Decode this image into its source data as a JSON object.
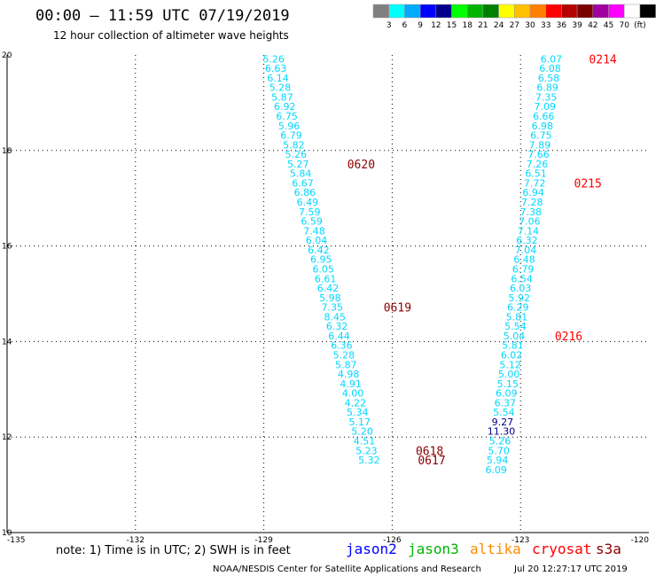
{
  "chart_data": {
    "type": "scatter",
    "title": "00:00 – 11:59 UTC 07/19/2019",
    "subtitle": "12 hour collection of altimeter wave heights",
    "xlim": [
      -135,
      -120
    ],
    "ylim": [
      10,
      20
    ],
    "x_ticks": [
      {
        "value": -135,
        "label": "-135"
      },
      {
        "value": -132,
        "label": "-132"
      },
      {
        "value": -129,
        "label": "-129"
      },
      {
        "value": -126,
        "label": "-126"
      },
      {
        "value": -123,
        "label": "-123"
      },
      {
        "value": -120,
        "label": "-120"
      }
    ],
    "y_ticks": [
      {
        "value": 10,
        "label": "10"
      },
      {
        "value": 12,
        "label": "12"
      },
      {
        "value": 14,
        "label": "14"
      },
      {
        "value": 16,
        "label": "16"
      },
      {
        "value": 18,
        "label": "18"
      },
      {
        "value": 20,
        "label": "20"
      }
    ],
    "grid": true,
    "colorbar": {
      "unit": "(ft)",
      "colors": [
        "#808080",
        "#00ffff",
        "#00aaff",
        "#0000ff",
        "#00008b",
        "#00ff00",
        "#00b400",
        "#008000",
        "#ffff00",
        "#ffc000",
        "#ff8000",
        "#ff0000",
        "#b40000",
        "#780000",
        "#a000a0",
        "#ff00ff",
        "#ffffff",
        "#000000"
      ],
      "labels": [
        "3",
        "6",
        "9",
        "12",
        "15",
        "18",
        "21",
        "24",
        "27",
        "30",
        "33",
        "36",
        "39",
        "42",
        "45",
        "70"
      ]
    },
    "tracks": [
      {
        "color": "#00d8ff",
        "points": [
          {
            "x": -128.77,
            "y": 19.92,
            "label": "5.26"
          },
          {
            "x": -128.72,
            "y": 19.72,
            "label": "6.63"
          },
          {
            "x": -128.67,
            "y": 19.52,
            "label": "6.14"
          },
          {
            "x": -128.62,
            "y": 19.32,
            "label": "5.28"
          },
          {
            "x": -128.57,
            "y": 19.12,
            "label": "5.87"
          },
          {
            "x": -128.51,
            "y": 18.92,
            "label": "6.92"
          },
          {
            "x": -128.46,
            "y": 18.72,
            "label": "6.75"
          },
          {
            "x": -128.41,
            "y": 18.52,
            "label": "5.96"
          },
          {
            "x": -128.36,
            "y": 18.32,
            "label": "6.79"
          },
          {
            "x": -128.3,
            "y": 18.12,
            "label": "5.82"
          },
          {
            "x": -128.25,
            "y": 17.92,
            "label": "5.26"
          },
          {
            "x": -128.2,
            "y": 17.72,
            "label": "5.27"
          },
          {
            "x": -128.14,
            "y": 17.52,
            "label": "5.84"
          },
          {
            "x": -128.09,
            "y": 17.32,
            "label": "6.67"
          },
          {
            "x": -128.04,
            "y": 17.12,
            "label": "6.86"
          },
          {
            "x": -127.98,
            "y": 16.92,
            "label": "6.49"
          },
          {
            "x": -127.93,
            "y": 16.72,
            "label": "7.59"
          },
          {
            "x": -127.88,
            "y": 16.52,
            "label": "6.59"
          },
          {
            "x": -127.82,
            "y": 16.32,
            "label": "7.48"
          },
          {
            "x": -127.77,
            "y": 16.12,
            "label": "6.04"
          },
          {
            "x": -127.72,
            "y": 15.92,
            "label": "6.42"
          },
          {
            "x": -127.66,
            "y": 15.72,
            "label": "6.95"
          },
          {
            "x": -127.61,
            "y": 15.52,
            "label": "6.05"
          },
          {
            "x": -127.56,
            "y": 15.32,
            "label": "6.61"
          },
          {
            "x": -127.5,
            "y": 15.12,
            "label": "6.42"
          },
          {
            "x": -127.45,
            "y": 14.92,
            "label": "5.98"
          },
          {
            "x": -127.4,
            "y": 14.72,
            "label": "7.35"
          },
          {
            "x": -127.34,
            "y": 14.52,
            "label": "8.45"
          },
          {
            "x": -127.29,
            "y": 14.32,
            "label": "6.32"
          },
          {
            "x": -127.24,
            "y": 14.12,
            "label": "6.44"
          },
          {
            "x": -127.18,
            "y": 13.92,
            "label": "6.36"
          },
          {
            "x": -127.13,
            "y": 13.72,
            "label": "5.28"
          },
          {
            "x": -127.08,
            "y": 13.52,
            "label": "5.87"
          },
          {
            "x": -127.02,
            "y": 13.32,
            "label": "4.98"
          },
          {
            "x": -126.97,
            "y": 13.12,
            "label": "4.91"
          },
          {
            "x": -126.92,
            "y": 12.92,
            "label": "4.00"
          },
          {
            "x": -126.86,
            "y": 12.72,
            "label": "4.22"
          },
          {
            "x": -126.81,
            "y": 12.52,
            "label": "5.34"
          },
          {
            "x": -126.76,
            "y": 12.32,
            "label": "5.17"
          },
          {
            "x": -126.7,
            "y": 12.12,
            "label": "5.20"
          },
          {
            "x": -126.65,
            "y": 11.92,
            "label": "4.51"
          },
          {
            "x": -126.6,
            "y": 11.72,
            "label": "5.23"
          },
          {
            "x": -126.54,
            "y": 11.52,
            "label": "5.32"
          }
        ],
        "annotations": [
          {
            "x": -127.05,
            "y": 17.72,
            "label": "0620",
            "color": "#8b0000"
          },
          {
            "x": -126.2,
            "y": 14.72,
            "label": "0619",
            "color": "#8b0000"
          },
          {
            "x": -125.45,
            "y": 11.72,
            "label": "0618",
            "color": "#8b0000"
          },
          {
            "x": -125.4,
            "y": 11.52,
            "label": "0617",
            "color": "#8b0000"
          }
        ]
      },
      {
        "color": "#00d8ff",
        "points": [
          {
            "x": -122.28,
            "y": 19.92,
            "label": "6.07"
          },
          {
            "x": -122.31,
            "y": 19.72,
            "label": "6.08"
          },
          {
            "x": -122.34,
            "y": 19.52,
            "label": "6.58"
          },
          {
            "x": -122.37,
            "y": 19.32,
            "label": "6.89"
          },
          {
            "x": -122.4,
            "y": 19.12,
            "label": "7.35"
          },
          {
            "x": -122.43,
            "y": 18.92,
            "label": "7.09"
          },
          {
            "x": -122.46,
            "y": 18.72,
            "label": "6.66"
          },
          {
            "x": -122.49,
            "y": 18.52,
            "label": "6.98"
          },
          {
            "x": -122.52,
            "y": 18.32,
            "label": "6.75"
          },
          {
            "x": -122.55,
            "y": 18.12,
            "label": "7.89"
          },
          {
            "x": -122.58,
            "y": 17.92,
            "label": "7.66"
          },
          {
            "x": -122.61,
            "y": 17.72,
            "label": "7.26"
          },
          {
            "x": -122.64,
            "y": 17.52,
            "label": "6.51"
          },
          {
            "x": -122.67,
            "y": 17.32,
            "label": "7.72"
          },
          {
            "x": -122.7,
            "y": 17.12,
            "label": "6.94"
          },
          {
            "x": -122.73,
            "y": 16.92,
            "label": "7.28"
          },
          {
            "x": -122.76,
            "y": 16.72,
            "label": "7.38"
          },
          {
            "x": -122.79,
            "y": 16.52,
            "label": "7.06"
          },
          {
            "x": -122.82,
            "y": 16.32,
            "label": "7.14"
          },
          {
            "x": -122.85,
            "y": 16.12,
            "label": "6.32"
          },
          {
            "x": -122.88,
            "y": 15.92,
            "label": "7.04"
          },
          {
            "x": -122.91,
            "y": 15.72,
            "label": "6.48"
          },
          {
            "x": -122.94,
            "y": 15.52,
            "label": "6.79"
          },
          {
            "x": -122.97,
            "y": 15.32,
            "label": "6.54"
          },
          {
            "x": -123.0,
            "y": 15.12,
            "label": "6.03"
          },
          {
            "x": -123.03,
            "y": 14.92,
            "label": "5.92"
          },
          {
            "x": -123.06,
            "y": 14.72,
            "label": "6.29"
          },
          {
            "x": -123.09,
            "y": 14.52,
            "label": "5.81"
          },
          {
            "x": -123.12,
            "y": 14.32,
            "label": "5.54"
          },
          {
            "x": -123.15,
            "y": 14.12,
            "label": "5.04"
          },
          {
            "x": -123.18,
            "y": 13.92,
            "label": "5.81"
          },
          {
            "x": -123.21,
            "y": 13.72,
            "label": "6.02"
          },
          {
            "x": -123.24,
            "y": 13.52,
            "label": "5.12"
          },
          {
            "x": -123.27,
            "y": 13.32,
            "label": "5.00"
          },
          {
            "x": -123.3,
            "y": 13.12,
            "label": "5.15"
          },
          {
            "x": -123.33,
            "y": 12.92,
            "label": "6.09"
          },
          {
            "x": -123.36,
            "y": 12.72,
            "label": "6.37"
          },
          {
            "x": -123.39,
            "y": 12.52,
            "label": "5.54"
          },
          {
            "x": -123.42,
            "y": 12.32,
            "label": "9.27",
            "color": "#00008b"
          },
          {
            "x": -123.45,
            "y": 12.12,
            "label": "11.30",
            "color": "#00008b"
          },
          {
            "x": -123.48,
            "y": 11.92,
            "label": "5.26"
          },
          {
            "x": -123.51,
            "y": 11.72,
            "label": "5.70"
          },
          {
            "x": -123.54,
            "y": 11.52,
            "label": "5.94"
          },
          {
            "x": -123.57,
            "y": 11.32,
            "label": "6.09"
          }
        ],
        "annotations": [
          {
            "x": -121.4,
            "y": 19.92,
            "label": "0214",
            "color": "#ff0000"
          },
          {
            "x": -121.75,
            "y": 17.32,
            "label": "0215",
            "color": "#ff0000"
          },
          {
            "x": -122.2,
            "y": 14.12,
            "label": "0216",
            "color": "#ff0000"
          }
        ]
      }
    ]
  },
  "footer": {
    "note": "note: 1) Time is in UTC; 2) SWH is in feet",
    "legend": [
      {
        "label": "jason2",
        "color": "#0000ff"
      },
      {
        "label": "jason3",
        "color": "#00b400"
      },
      {
        "label": "altika",
        "color": "#ff8c00"
      },
      {
        "label": "cryosat",
        "color": "#ff0000"
      },
      {
        "label": "s3a",
        "color": "#8b0000"
      }
    ],
    "credit": "NOAA/NESDIS Center for Satellite Applications and Research",
    "timestamp": "Jul 20 12:27:17 UTC 2019"
  }
}
